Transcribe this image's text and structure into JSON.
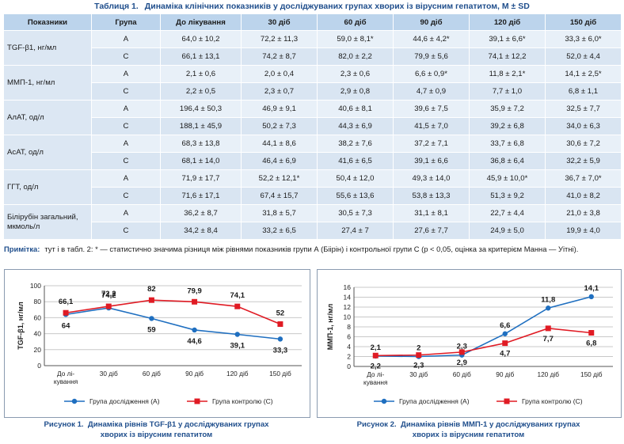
{
  "table": {
    "caption_num": "Таблиця 1.",
    "caption_text": "Динаміка клінічних показників у досліджуваних групах хворих із вірусним гепатитом, M ± SD",
    "headers": [
      "Показники",
      "Група",
      "До лікування",
      "30 діб",
      "60 діб",
      "90 діб",
      "120 діб",
      "150 діб"
    ],
    "rows": [
      {
        "indicator": "TGF-β1, нг/мл",
        "a": [
          "A",
          "64,0 ± 10,2",
          "72,2 ± 11,3",
          "59,0 ± 8,1*",
          "44,6 ± 4,2*",
          "39,1 ± 6,6*",
          "33,3 ± 6,0*"
        ],
        "c": [
          "C",
          "66,1 ± 13,1",
          "74,2 ± 8,7",
          "82,0 ± 2,2",
          "79,9 ± 5,6",
          "74,1 ± 12,2",
          "52,0 ± 4,4"
        ]
      },
      {
        "indicator": "ММП-1, нг/мл",
        "a": [
          "A",
          "2,1 ± 0,6",
          "2,0 ± 0,4",
          "2,3 ± 0,6",
          "6,6 ± 0,9*",
          "11,8 ± 2,1*",
          "14,1 ± 2,5*"
        ],
        "c": [
          "C",
          "2,2 ± 0,5",
          "2,3 ± 0,7",
          "2,9 ± 0,8",
          "4,7 ± 0,9",
          "7,7 ± 1,0",
          "6,8 ± 1,1"
        ]
      },
      {
        "indicator": "АлАТ, од/л",
        "a": [
          "A",
          "196,4 ± 50,3",
          "46,9 ± 9,1",
          "40,6 ± 8,1",
          "39,6 ± 7,5",
          "35,9 ± 7,2",
          "32,5 ± 7,7"
        ],
        "c": [
          "C",
          "188,1 ± 45,9",
          "50,2 ± 7,3",
          "44,3 ± 6,9",
          "41,5 ± 7,0",
          "39,2 ± 6,8",
          "34,0 ± 6,3"
        ]
      },
      {
        "indicator": "АсАТ, од/л",
        "a": [
          "A",
          "68,3 ± 13,8",
          "44,1 ± 8,6",
          "38,2 ± 7,6",
          "37,2 ± 7,1",
          "33,7 ± 6,8",
          "30,6 ± 7,2"
        ],
        "c": [
          "C",
          "68,1 ± 14,0",
          "46,4 ± 6,9",
          "41,6 ± 6,5",
          "39,1 ± 6,6",
          "36,8 ± 6,4",
          "32,2 ± 5,9"
        ]
      },
      {
        "indicator": "ГГТ, од/л",
        "a": [
          "A",
          "71,9 ± 17,7",
          "52,2 ± 12,1*",
          "50,4 ± 12,0",
          "49,3 ± 14,0",
          "45,9 ± 10,0*",
          "36,7 ± 7,0*"
        ],
        "c": [
          "C",
          "71,6 ± 17,1",
          "67,4 ± 15,7",
          "55,6 ± 13,6",
          "53,8 ± 13,3",
          "51,3 ± 9,2",
          "41,0 ± 8,2"
        ]
      },
      {
        "indicator": "Білірубін загальний, мкмоль/л",
        "a": [
          "A",
          "36,2 ± 8,7",
          "31,8 ± 5,7",
          "30,5 ± 7,3",
          "31,1 ± 8,1",
          "22,7 ± 4,4",
          "21,0 ± 3,8"
        ],
        "c": [
          "C",
          "34,2 ± 8,4",
          "33,2 ± 6,5",
          "27,4 ± 7",
          "27,6 ± 7,7",
          "24,9 ± 5,0",
          "19,9 ± 4,0"
        ]
      }
    ]
  },
  "note": {
    "label": "Примітка:",
    "text": "тут і в табл. 2: * — статистично значима різниця між рівнями показників групи А (Біірін) і контрольної групи С (p < 0,05, оцінка за критерієм Манна — Уітні)."
  },
  "chart_data": [
    {
      "type": "line",
      "ylabel": "TGF-β1, нг/мл",
      "categories": [
        "До лікування",
        "30 діб",
        "60 діб",
        "90 діб",
        "120 діб",
        "150 діб"
      ],
      "category_lines": [
        [
          "До лі-",
          "кування"
        ],
        [
          "30 діб"
        ],
        [
          "60 діб"
        ],
        [
          "90 діб"
        ],
        [
          "120 діб"
        ],
        [
          "150 діб"
        ]
      ],
      "ylim": [
        0,
        100
      ],
      "yticks": [
        0,
        20,
        40,
        60,
        80,
        100
      ],
      "grid": true,
      "legend_position": "bottom",
      "series": [
        {
          "name": "Група дослідження (А)",
          "color": "#1f6fc0",
          "marker": "circle",
          "values": [
            64,
            72.2,
            59,
            44.6,
            39.1,
            33.3
          ],
          "labels": [
            "64",
            "72,2",
            "59",
            "44,6",
            "39,1",
            "33,3"
          ]
        },
        {
          "name": "Група контролю (С)",
          "color": "#e01b24",
          "marker": "square",
          "values": [
            66.1,
            74.2,
            82,
            79.9,
            74.1,
            52
          ],
          "labels": [
            "66,1",
            "74,2",
            "82",
            "79,9",
            "74,1",
            "52"
          ]
        }
      ],
      "caption_num": "Рисунок 1.",
      "caption_line1": "Динаміка рівнів TGF-β1 у досліджуваних групах",
      "caption_line2": "хворих із вірусним гепатитом"
    },
    {
      "type": "line",
      "ylabel": "ММП-1, нг/мл",
      "categories": [
        "До лікування",
        "30 діб",
        "60 діб",
        "90 діб",
        "120 діб",
        "150 діб"
      ],
      "category_lines": [
        [
          "До лі-",
          "кування"
        ],
        [
          "30 діб"
        ],
        [
          "60 діб"
        ],
        [
          "90 діб"
        ],
        [
          "120 діб"
        ],
        [
          "150 діб"
        ]
      ],
      "ylim": [
        0,
        16
      ],
      "yticks": [
        0,
        2,
        4,
        6,
        8,
        10,
        12,
        14,
        16
      ],
      "grid": true,
      "legend_position": "bottom",
      "series": [
        {
          "name": "Група дослідження (А)",
          "color": "#1f6fc0",
          "marker": "circle",
          "values": [
            2.1,
            2,
            2.3,
            6.6,
            11.8,
            14.1
          ],
          "labels": [
            "2,1",
            "2",
            "2,3",
            "6,6",
            "11,8",
            "14,1"
          ]
        },
        {
          "name": "Група контролю (С)",
          "color": "#e01b24",
          "marker": "square",
          "values": [
            2.2,
            2.3,
            2.9,
            4.7,
            7.7,
            6.8
          ],
          "labels": [
            "2,2",
            "2,3",
            "2,9",
            "4,7",
            "7,7",
            "6,8"
          ]
        }
      ],
      "caption_num": "Рисунок 2.",
      "caption_line1": "Динаміка рівнів ММП-1 у досліджуваних групах",
      "caption_line2": "хворих із вірусним гепатитом"
    }
  ]
}
